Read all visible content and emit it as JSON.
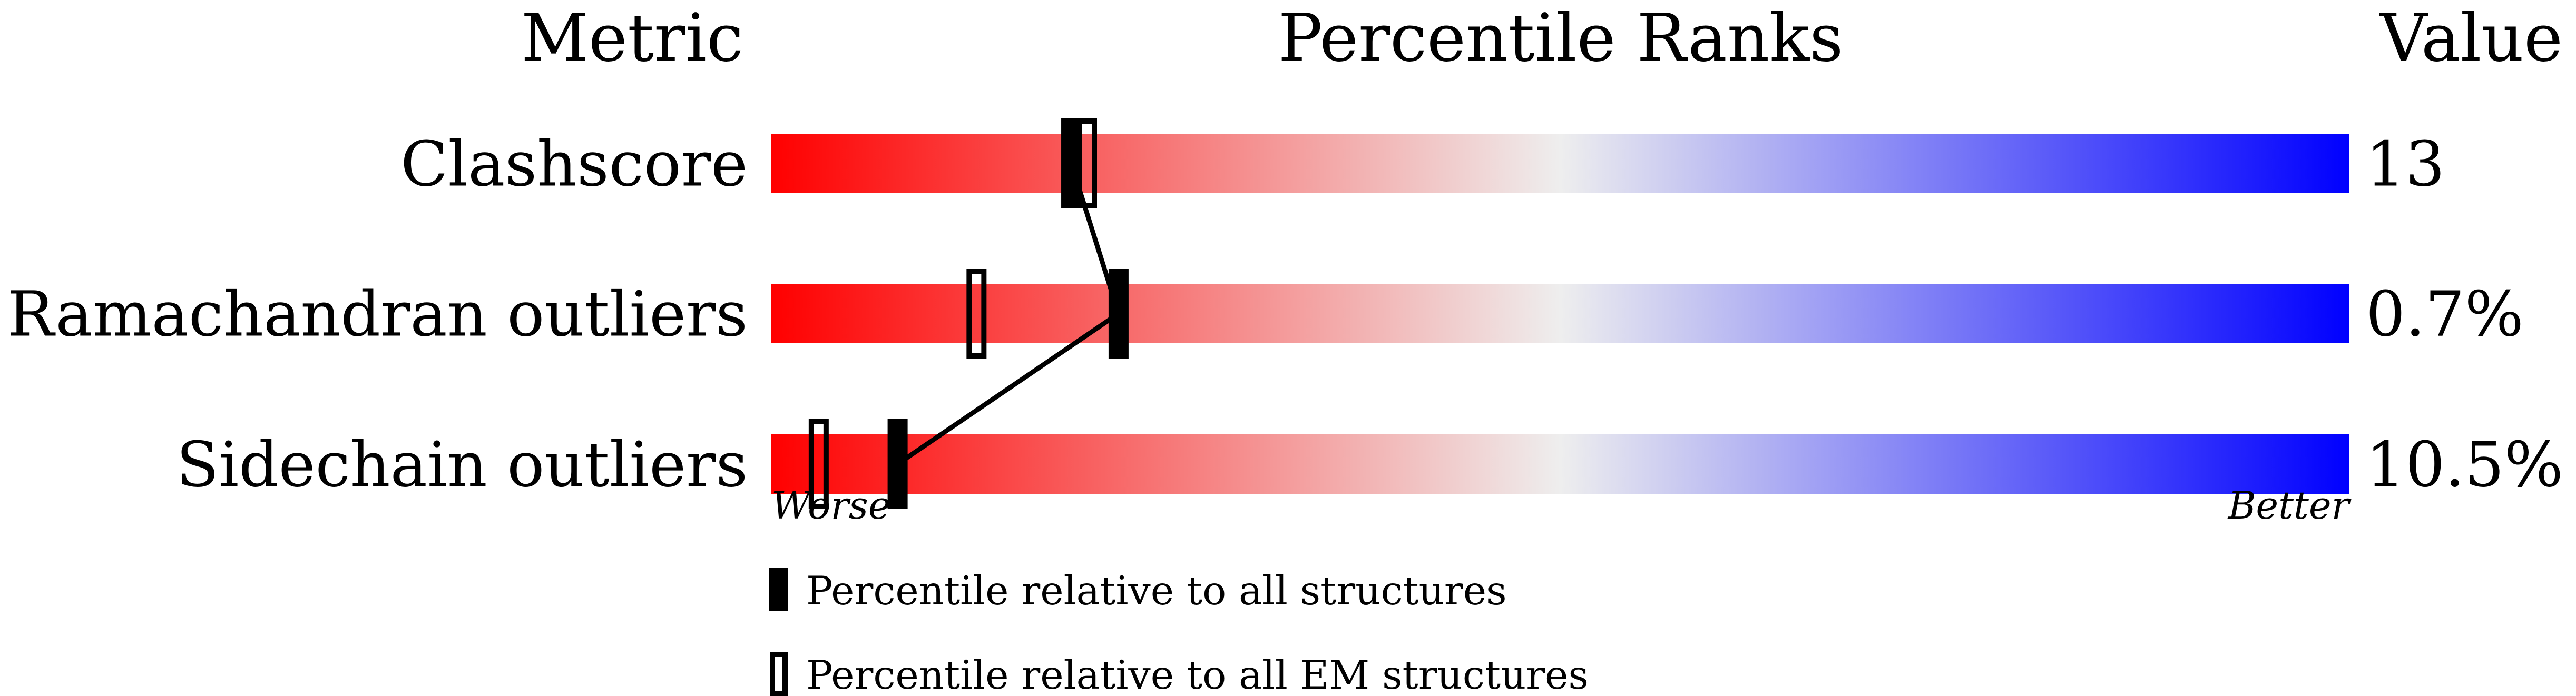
{
  "chart_data": {
    "type": "percentile-bar",
    "headers": {
      "metric": "Metric",
      "ranks": "Percentile Ranks",
      "value": "Value"
    },
    "xlim": [
      0,
      100
    ],
    "rows": [
      {
        "metric": "Clashscore",
        "value": "13",
        "percentile_all": 19,
        "percentile_em": 20
      },
      {
        "metric": "Ramachandran outliers",
        "value": "0.7%",
        "percentile_all": 22,
        "percentile_em": 13
      },
      {
        "metric": "Sidechain outliers",
        "value": "10.5%",
        "percentile_all": 8,
        "percentile_em": 3
      }
    ],
    "axis": {
      "worse": "Worse",
      "better": "Better"
    },
    "legend": [
      {
        "marker": "filled",
        "label": "Percentile relative to all structures"
      },
      {
        "marker": "open",
        "label": "Percentile relative to all EM structures"
      }
    ],
    "colors": {
      "worse": "#ff0000",
      "middle": "#eeeeee",
      "better": "#0000ff",
      "marker": "#000000"
    }
  }
}
